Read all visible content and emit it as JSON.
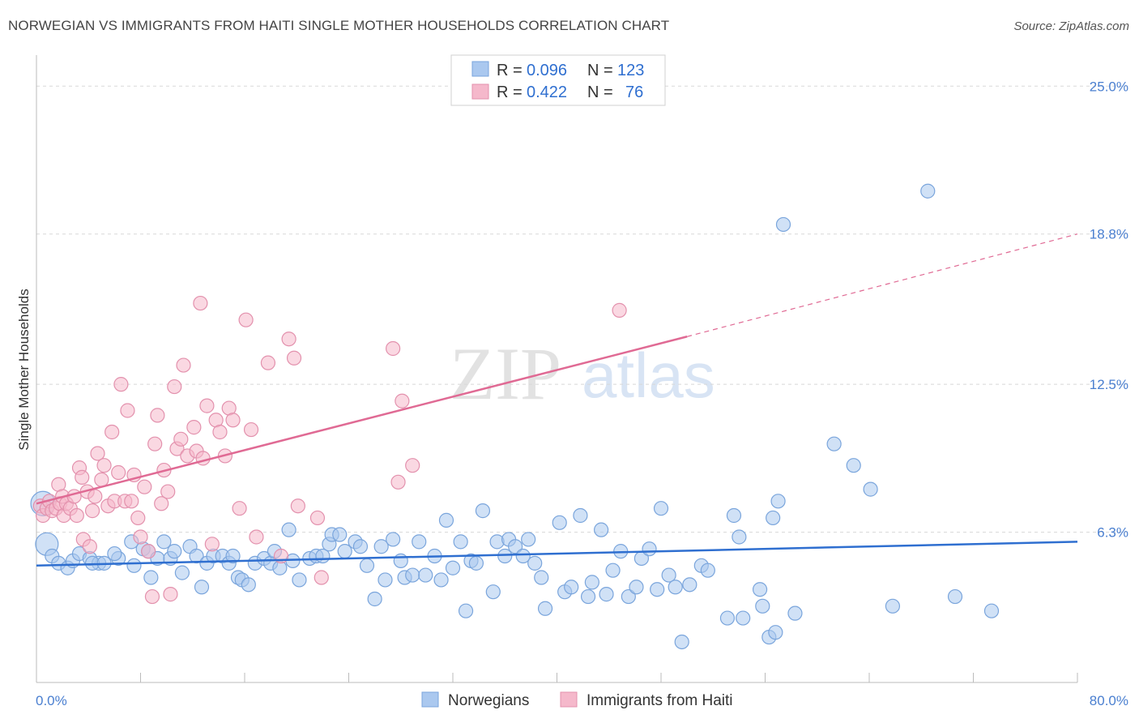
{
  "header": {
    "title": "NORWEGIAN VS IMMIGRANTS FROM HAITI SINGLE MOTHER HOUSEHOLDS CORRELATION CHART",
    "source": "Source: ZipAtlas.com"
  },
  "watermark": {
    "zip": "ZIP",
    "atlas": "atlas"
  },
  "legend": {
    "r_label": "R =",
    "n_label": "N =",
    "rows": [
      {
        "r": "0.096",
        "n": "123"
      },
      {
        "r": "0.422",
        "n": "76"
      }
    ]
  },
  "colors": {
    "norwegians_fill": "#aac8ef",
    "norwegians_line": "#2f6fd0",
    "haiti_fill": "#f5b8cb",
    "haiti_line": "#e06a94",
    "tick_text": "#4a7fd0",
    "grid": "#d8d8d8"
  },
  "chart_data": {
    "type": "scatter",
    "title": "NORWEGIAN VS IMMIGRANTS FROM HAITI SINGLE MOTHER HOUSEHOLDS CORRELATION CHART",
    "xlabel": "",
    "ylabel": "Single Mother Households",
    "xlim": [
      0,
      80
    ],
    "ylim": [
      0,
      26.3
    ],
    "x_tick_labels": [
      "0.0%",
      "80.0%"
    ],
    "y_ticks": [
      6.3,
      12.5,
      18.8,
      25.0
    ],
    "y_tick_labels": [
      "6.3%",
      "12.5%",
      "18.8%",
      "25.0%"
    ],
    "grid": "horizontal dashed",
    "legend_placement": "bottom-center",
    "series": [
      {
        "name": "Norwegians",
        "r": 0.096,
        "n": 123,
        "trend": {
          "x": [
            0,
            80
          ],
          "y": [
            4.9,
            5.9
          ]
        },
        "points": [
          [
            0.5,
            7.5
          ],
          [
            0.8,
            5.8
          ],
          [
            1.2,
            5.3
          ],
          [
            1.7,
            5.0
          ],
          [
            2.4,
            4.8
          ],
          [
            2.8,
            5.1
          ],
          [
            3.3,
            5.4
          ],
          [
            4.1,
            5.2
          ],
          [
            4.8,
            5.0
          ],
          [
            4.3,
            5.0
          ],
          [
            5.2,
            5.0
          ],
          [
            6.3,
            5.2
          ],
          [
            6.0,
            5.4
          ],
          [
            7.3,
            5.9
          ],
          [
            7.5,
            4.9
          ],
          [
            8.2,
            5.6
          ],
          [
            8.6,
            5.5
          ],
          [
            8.8,
            4.4
          ],
          [
            9.3,
            5.2
          ],
          [
            9.8,
            5.9
          ],
          [
            10.3,
            5.2
          ],
          [
            10.6,
            5.5
          ],
          [
            11.2,
            4.6
          ],
          [
            11.8,
            5.7
          ],
          [
            12.3,
            5.3
          ],
          [
            12.7,
            4.0
          ],
          [
            13.1,
            5.0
          ],
          [
            13.6,
            5.3
          ],
          [
            14.3,
            5.3
          ],
          [
            14.8,
            5.0
          ],
          [
            15.1,
            5.3
          ],
          [
            15.5,
            4.4
          ],
          [
            15.8,
            4.3
          ],
          [
            16.3,
            4.1
          ],
          [
            16.8,
            5.0
          ],
          [
            17.5,
            5.2
          ],
          [
            18.0,
            5.0
          ],
          [
            18.3,
            5.5
          ],
          [
            18.7,
            4.8
          ],
          [
            19.4,
            6.4
          ],
          [
            19.7,
            5.1
          ],
          [
            20.2,
            4.3
          ],
          [
            21.0,
            5.2
          ],
          [
            21.5,
            5.3
          ],
          [
            22.0,
            5.3
          ],
          [
            22.5,
            5.8
          ],
          [
            22.7,
            6.2
          ],
          [
            23.3,
            6.2
          ],
          [
            23.7,
            5.5
          ],
          [
            24.5,
            5.9
          ],
          [
            24.9,
            5.7
          ],
          [
            25.4,
            4.9
          ],
          [
            26.0,
            3.5
          ],
          [
            26.5,
            5.7
          ],
          [
            26.8,
            4.3
          ],
          [
            27.4,
            6.0
          ],
          [
            28.0,
            5.1
          ],
          [
            28.3,
            4.4
          ],
          [
            28.9,
            4.5
          ],
          [
            29.4,
            5.9
          ],
          [
            29.9,
            4.5
          ],
          [
            30.6,
            5.3
          ],
          [
            31.1,
            4.3
          ],
          [
            31.5,
            6.8
          ],
          [
            32.0,
            4.8
          ],
          [
            32.6,
            5.9
          ],
          [
            33.0,
            3.0
          ],
          [
            33.4,
            5.1
          ],
          [
            33.8,
            5.0
          ],
          [
            34.3,
            7.2
          ],
          [
            35.1,
            3.8
          ],
          [
            35.4,
            5.9
          ],
          [
            36.0,
            5.3
          ],
          [
            36.3,
            6.0
          ],
          [
            36.8,
            5.7
          ],
          [
            37.4,
            5.3
          ],
          [
            37.8,
            6.0
          ],
          [
            38.3,
            5.0
          ],
          [
            38.8,
            4.4
          ],
          [
            39.1,
            3.1
          ],
          [
            40.2,
            6.7
          ],
          [
            40.6,
            3.8
          ],
          [
            41.1,
            4.0
          ],
          [
            41.8,
            7.0
          ],
          [
            42.4,
            3.6
          ],
          [
            42.7,
            4.2
          ],
          [
            43.4,
            6.4
          ],
          [
            43.8,
            3.7
          ],
          [
            44.3,
            4.7
          ],
          [
            44.9,
            5.5
          ],
          [
            45.5,
            3.6
          ],
          [
            46.1,
            4.0
          ],
          [
            46.5,
            5.2
          ],
          [
            47.1,
            5.6
          ],
          [
            47.7,
            3.9
          ],
          [
            48.0,
            7.3
          ],
          [
            48.6,
            4.5
          ],
          [
            49.1,
            4.0
          ],
          [
            49.6,
            1.7
          ],
          [
            50.2,
            4.1
          ],
          [
            51.1,
            4.9
          ],
          [
            51.6,
            4.7
          ],
          [
            53.1,
            2.7
          ],
          [
            53.6,
            7.0
          ],
          [
            54.0,
            6.1
          ],
          [
            54.3,
            2.7
          ],
          [
            55.6,
            3.9
          ],
          [
            55.8,
            3.2
          ],
          [
            56.6,
            6.9
          ],
          [
            57.0,
            7.6
          ],
          [
            56.3,
            1.9
          ],
          [
            56.8,
            2.1
          ],
          [
            58.3,
            2.9
          ],
          [
            61.3,
            10.0
          ],
          [
            62.8,
            9.1
          ],
          [
            64.1,
            8.1
          ],
          [
            65.8,
            3.2
          ],
          [
            68.5,
            20.6
          ],
          [
            70.6,
            3.6
          ],
          [
            73.4,
            3.0
          ],
          [
            57.4,
            19.2
          ]
        ]
      },
      {
        "name": "Immigrants from Haiti",
        "r": 0.422,
        "n": 76,
        "trend": {
          "x": [
            0,
            50
          ],
          "y": [
            7.5,
            14.5
          ]
        },
        "trend_extrapolated": {
          "x": [
            50,
            80
          ],
          "y": [
            14.5,
            18.8
          ]
        },
        "points": [
          [
            0.3,
            7.4
          ],
          [
            0.5,
            7.0
          ],
          [
            0.8,
            7.3
          ],
          [
            1.0,
            7.6
          ],
          [
            1.2,
            7.2
          ],
          [
            1.5,
            7.3
          ],
          [
            1.7,
            8.3
          ],
          [
            1.8,
            7.5
          ],
          [
            2.0,
            7.8
          ],
          [
            2.1,
            7.0
          ],
          [
            2.3,
            7.5
          ],
          [
            2.6,
            7.3
          ],
          [
            2.9,
            7.8
          ],
          [
            3.1,
            7.0
          ],
          [
            3.3,
            9.0
          ],
          [
            3.5,
            8.6
          ],
          [
            3.6,
            6.0
          ],
          [
            3.9,
            8.0
          ],
          [
            4.1,
            5.7
          ],
          [
            4.3,
            7.2
          ],
          [
            4.5,
            7.8
          ],
          [
            4.7,
            9.6
          ],
          [
            5.0,
            8.5
          ],
          [
            5.2,
            9.1
          ],
          [
            5.5,
            7.4
          ],
          [
            5.8,
            10.5
          ],
          [
            6.0,
            7.6
          ],
          [
            6.3,
            8.8
          ],
          [
            6.5,
            12.5
          ],
          [
            6.8,
            7.6
          ],
          [
            7.0,
            11.4
          ],
          [
            7.3,
            7.6
          ],
          [
            7.5,
            8.7
          ],
          [
            7.8,
            6.9
          ],
          [
            8.0,
            6.1
          ],
          [
            8.3,
            8.2
          ],
          [
            8.6,
            5.5
          ],
          [
            8.9,
            3.6
          ],
          [
            9.1,
            10.0
          ],
          [
            9.3,
            11.2
          ],
          [
            9.6,
            7.5
          ],
          [
            9.8,
            8.9
          ],
          [
            10.1,
            8.0
          ],
          [
            10.3,
            3.7
          ],
          [
            10.6,
            12.4
          ],
          [
            10.8,
            9.8
          ],
          [
            11.1,
            10.2
          ],
          [
            11.3,
            13.3
          ],
          [
            11.6,
            9.5
          ],
          [
            12.1,
            10.7
          ],
          [
            12.3,
            9.7
          ],
          [
            12.6,
            15.9
          ],
          [
            12.8,
            9.4
          ],
          [
            13.1,
            11.6
          ],
          [
            13.5,
            5.8
          ],
          [
            13.8,
            11.0
          ],
          [
            14.1,
            10.5
          ],
          [
            14.5,
            9.5
          ],
          [
            14.8,
            11.5
          ],
          [
            15.1,
            11.0
          ],
          [
            15.6,
            7.3
          ],
          [
            16.1,
            15.2
          ],
          [
            16.5,
            10.6
          ],
          [
            16.9,
            6.1
          ],
          [
            17.8,
            13.4
          ],
          [
            18.8,
            5.3
          ],
          [
            19.4,
            14.4
          ],
          [
            19.8,
            13.6
          ],
          [
            20.1,
            7.4
          ],
          [
            21.6,
            6.9
          ],
          [
            21.9,
            4.4
          ],
          [
            27.4,
            14.0
          ],
          [
            27.8,
            8.4
          ],
          [
            28.1,
            11.8
          ],
          [
            28.9,
            9.1
          ],
          [
            44.8,
            15.6
          ]
        ]
      }
    ]
  },
  "bottom_legend": {
    "items": [
      "Norwegians",
      "Immigrants from Haiti"
    ]
  }
}
